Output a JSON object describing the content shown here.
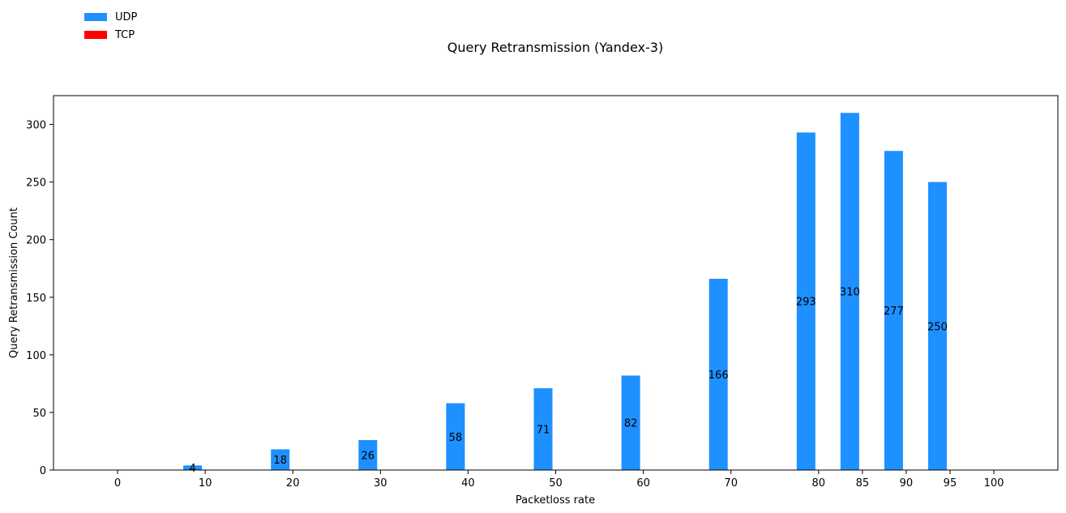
{
  "chart_data": {
    "type": "bar",
    "title": "Query Retransmission (Yandex-3)",
    "xlabel": "Packetloss rate",
    "ylabel": "Query Retransmission Count",
    "x": [
      0,
      10,
      20,
      30,
      40,
      50,
      60,
      70,
      80,
      85,
      90,
      95,
      100
    ],
    "x_tick_labels": [
      "0",
      "10",
      "20",
      "30",
      "40",
      "50",
      "60",
      "70",
      "80",
      "85",
      "90",
      "95",
      "100"
    ],
    "ylim": [
      0,
      325
    ],
    "y_ticks": [
      0,
      50,
      100,
      150,
      200,
      250,
      300
    ],
    "grid": false,
    "legend_position": "top-left",
    "series": [
      {
        "name": "UDP",
        "color": "#1e90ff",
        "values": [
          0,
          4,
          18,
          26,
          58,
          71,
          82,
          166,
          293,
          310,
          277,
          250,
          0
        ],
        "labels": [
          "",
          "4",
          "18",
          "26",
          "58",
          "71",
          "82",
          "166",
          "293",
          "310",
          "277",
          "250",
          ""
        ]
      },
      {
        "name": "TCP",
        "color": "#ff0000",
        "values": [
          0,
          0,
          0,
          0,
          0,
          0,
          0,
          0,
          0,
          0,
          0,
          0,
          0
        ],
        "labels": []
      }
    ]
  }
}
